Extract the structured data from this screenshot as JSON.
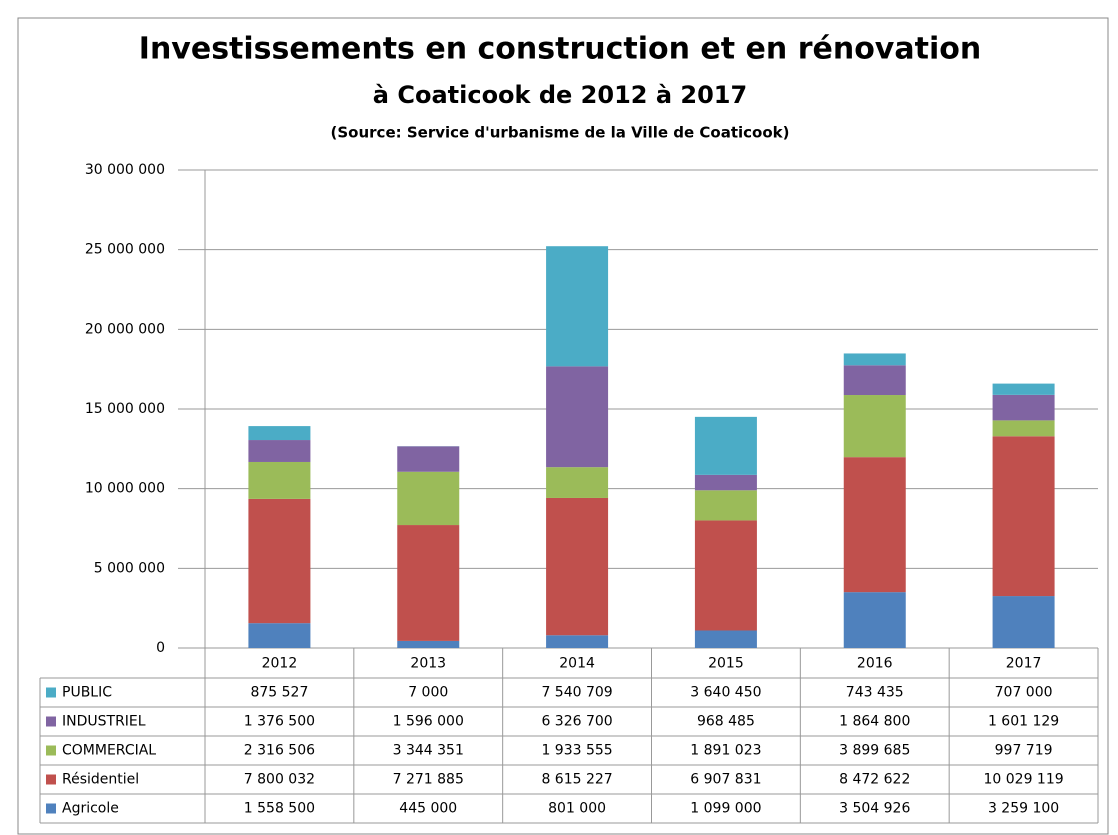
{
  "chart_data": {
    "type": "stacked_bar",
    "title": "Investissements en construction et en rénovation",
    "subtitle": "à Coaticook de 2012 à 2017",
    "source": "(Source: Service d'urbanisme de la Ville de Coaticook)",
    "categories": [
      "2012",
      "2013",
      "2014",
      "2015",
      "2016",
      "2017"
    ],
    "series": [
      {
        "name": "PUBLIC",
        "color": "#4bacc6",
        "values": [
          875527,
          7000,
          7540709,
          3640450,
          743435,
          707000
        ],
        "value_labels": [
          "875 527",
          "7 000",
          "7 540 709",
          "3 640 450",
          "743 435",
          "707 000"
        ]
      },
      {
        "name": "INDUSTRIEL",
        "color": "#8064a2",
        "values": [
          1376500,
          1596000,
          6326700,
          968485,
          1864800,
          1601129
        ],
        "value_labels": [
          "1 376 500",
          "1 596 000",
          "6 326 700",
          "968 485",
          "1 864 800",
          "1 601 129"
        ]
      },
      {
        "name": "COMMERCIAL",
        "color": "#9bbb59",
        "values": [
          2316506,
          3344351,
          1933555,
          1891023,
          3899685,
          997719
        ],
        "value_labels": [
          "2 316 506",
          "3 344 351",
          "1 933 555",
          "1 891 023",
          "3 899 685",
          "997 719"
        ]
      },
      {
        "name": "Résidentiel",
        "color": "#c0504d",
        "values": [
          7800032,
          7271885,
          8615227,
          6907831,
          8472622,
          10029119
        ],
        "value_labels": [
          "7 800 032",
          "7 271 885",
          "8 615 227",
          "6 907 831",
          "8 472 622",
          "10 029 119"
        ]
      },
      {
        "name": "Agricole",
        "color": "#4f81bd",
        "values": [
          1558500,
          445000,
          801000,
          1099000,
          3504926,
          3259100
        ],
        "value_labels": [
          "1 558 500",
          "445 000",
          "801 000",
          "1 099 000",
          "3 504 926",
          "3 259 100"
        ]
      }
    ],
    "ylim": [
      0,
      30000000
    ],
    "yticks": [
      0,
      {
        "value": 5000000,
        "label": "5 000 000"
      },
      {
        "value": 10000000,
        "label": "10 000 000"
      },
      {
        "value": 15000000,
        "label": "15 000 000"
      },
      {
        "value": 20000000,
        "label": "20 000 000"
      },
      {
        "value": 25000000,
        "label": "25 000 000"
      },
      {
        "value": 30000000,
        "label": "30 000 000"
      }
    ],
    "grid": true
  }
}
